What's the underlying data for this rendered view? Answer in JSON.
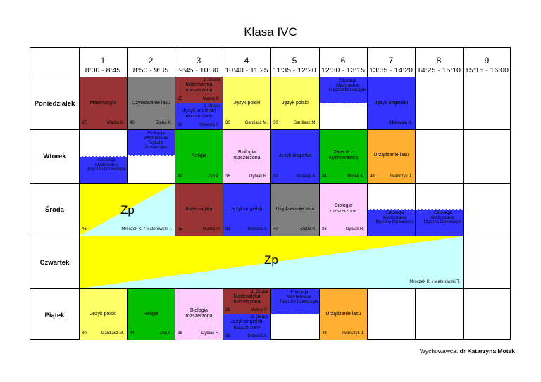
{
  "title": "Klasa IVC",
  "columns": [
    {
      "num": "1",
      "time": "8:00 - 8:45"
    },
    {
      "num": "2",
      "time": "8:50 - 9:35"
    },
    {
      "num": "3",
      "time": "9:45 - 10:30"
    },
    {
      "num": "4",
      "time": "10:40 - 11:25"
    },
    {
      "num": "5",
      "time": "11:35 - 12:20"
    },
    {
      "num": "6",
      "time": "12:30 - 13:15"
    },
    {
      "num": "7",
      "time": "13:35 - 14:20"
    },
    {
      "num": "8",
      "time": "14:25 - 15:10"
    },
    {
      "num": "9",
      "time": "15:15 - 16:00"
    }
  ],
  "days": [
    "Poniedziałek",
    "Wtorek",
    "Środa",
    "Czwartek",
    "Piątek"
  ],
  "cells": {
    "pon_mat": {
      "subject": "Matematyka",
      "room": "25",
      "teacher": "Maśko P."
    },
    "pon_ul": {
      "subject": "Użytkowanie lasu",
      "room": "40",
      "teacher": "Zięba K."
    },
    "pon_g1": {
      "group": "1. Grupa",
      "subject": "Matematyka rozszerzona",
      "room": "25",
      "teacher": "Maśko P."
    },
    "pon_g2": {
      "group": "2. Grupa",
      "subject": "Język angielski rozszerzony",
      "room": "33",
      "teacher": "Głowala A."
    },
    "pon_jp1": {
      "subject": "Język polski",
      "room": "30",
      "teacher": "Gardiasz M."
    },
    "pon_jp2": {
      "subject": "Język polski",
      "room": "30",
      "teacher": "Gardiasz M."
    },
    "pon_wdz": {
      "text": "Edukacja Wychowanie fizyczne Dziewczęta"
    },
    "pon_ang": {
      "subject": "Język angielski",
      "room": "33",
      "teacher": "Głowala A."
    },
    "wt_wf_top": {
      "text": "Edukacja Wychowanie fizyczne Dziewczęta"
    },
    "wt_wf_left": {
      "text": "Edukacja Wychowanie fizyczne Dziewczęta"
    },
    "wt_rel": {
      "subject": "Religia",
      "room": "40",
      "teacher": "Zań A."
    },
    "wt_bio": {
      "subject": "Biologia rozszerzona",
      "room": "36",
      "teacher": "Dybiak R."
    },
    "wt_ang": {
      "subject": "Język angielski",
      "room": "33",
      "teacher": "Głowala A."
    },
    "wt_zaj": {
      "subject": "Zajęcia z wychowawcą",
      "room": "44",
      "teacher": "Motek K."
    },
    "wt_url": {
      "subject": "Urządzanie lasu",
      "room": "48",
      "teacher": "Iwanczyk J."
    },
    "sr_zp": {
      "label": "Zp",
      "room": "46",
      "teacher": "Mroczek K. / Materowski T."
    },
    "sr_mat": {
      "subject": "Matematyka",
      "room": "25",
      "teacher": "Maśko P."
    },
    "sr_ang": {
      "subject": "Język angielski",
      "room": "33",
      "teacher": "Głowala A."
    },
    "sr_ul": {
      "subject": "Użytkowanie lasu",
      "room": "40",
      "teacher": "Zięba K."
    },
    "sr_bio": {
      "subject": "Biologia rozszerzona",
      "room": "36",
      "teacher": "Dybiak R."
    },
    "sr_wf7": {
      "text": "Edukacja Wychowanie fizyczne Dziewczęta"
    },
    "sr_wf8": {
      "text": "Edukacja Wychowanie fizyczne Dziewczęta"
    },
    "czw_zp": {
      "label": "Zp",
      "teacher": "Mroczek K. / Materowski T."
    },
    "pt_jp": {
      "subject": "Język polski",
      "room": "30",
      "teacher": "Gardiasz M."
    },
    "pt_rel": {
      "subject": "Religia",
      "room": "44",
      "teacher": "Zań A."
    },
    "pt_bio": {
      "subject": "Biologia rozszerzona",
      "room": "36",
      "teacher": "Dybiak R."
    },
    "pt_g1": {
      "group": "1. Grupa",
      "subject": "Matematyka rozszerzona",
      "room": "25",
      "teacher": "Maśko P."
    },
    "pt_g2": {
      "group": "2. Grupa",
      "subject": "Język angielski rozszerzony",
      "room": "33",
      "teacher": "Głowala A."
    },
    "pt_wf": {
      "text": "Edukacja Wychowanie fizyczne Dziewczęta"
    },
    "pt_url": {
      "subject": "Urządzanie lasu",
      "room": "48",
      "teacher": "Iwanczyk J."
    }
  },
  "footer": {
    "label": "Wychowawca:",
    "name": "dr Katarzyna Motek"
  },
  "colors": {
    "red": "#993333",
    "gray": "#808080",
    "blue": "#3333ff",
    "yellow": "#ffff66",
    "green": "#00c000",
    "pink": "#ffccff",
    "orange": "#ffb030",
    "cyan": "#c8ffff",
    "zp_yellow": "#ffff00"
  }
}
